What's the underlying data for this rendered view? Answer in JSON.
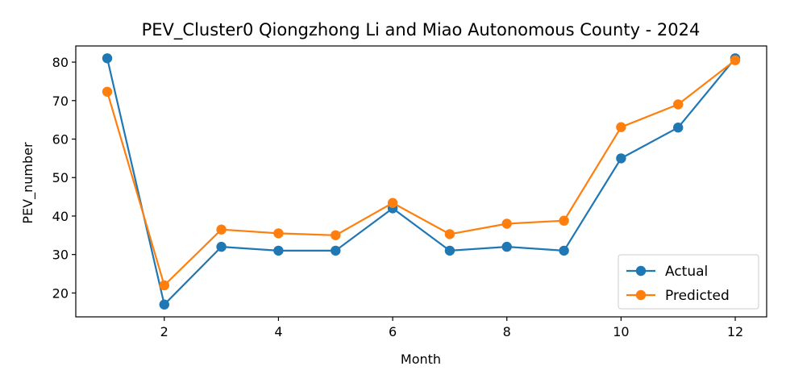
{
  "chart_data": {
    "type": "line",
    "title": "PEV_Cluster0 Qiongzhong Li and Miao Autonomous County - 2024",
    "xlabel": "Month",
    "ylabel": "PEV_number",
    "x": [
      1,
      2,
      3,
      4,
      5,
      6,
      7,
      8,
      9,
      10,
      11,
      12
    ],
    "xlim": [
      0.45,
      12.55
    ],
    "ylim": [
      13.8,
      84.2
    ],
    "xticks": [
      2,
      4,
      6,
      8,
      10,
      12
    ],
    "yticks": [
      20,
      30,
      40,
      50,
      60,
      70,
      80
    ],
    "grid": false,
    "legend_position": "lower-right",
    "series": [
      {
        "name": "Actual",
        "color": "#1f77b4",
        "values": [
          81,
          17,
          32,
          31,
          31,
          42,
          31,
          32,
          31,
          55,
          63,
          81
        ]
      },
      {
        "name": "Predicted",
        "color": "#ff7f0e",
        "values": [
          72.3,
          22,
          36.5,
          35.5,
          35,
          43.4,
          35.3,
          38,
          38.8,
          63.1,
          69,
          80.5
        ]
      }
    ]
  }
}
